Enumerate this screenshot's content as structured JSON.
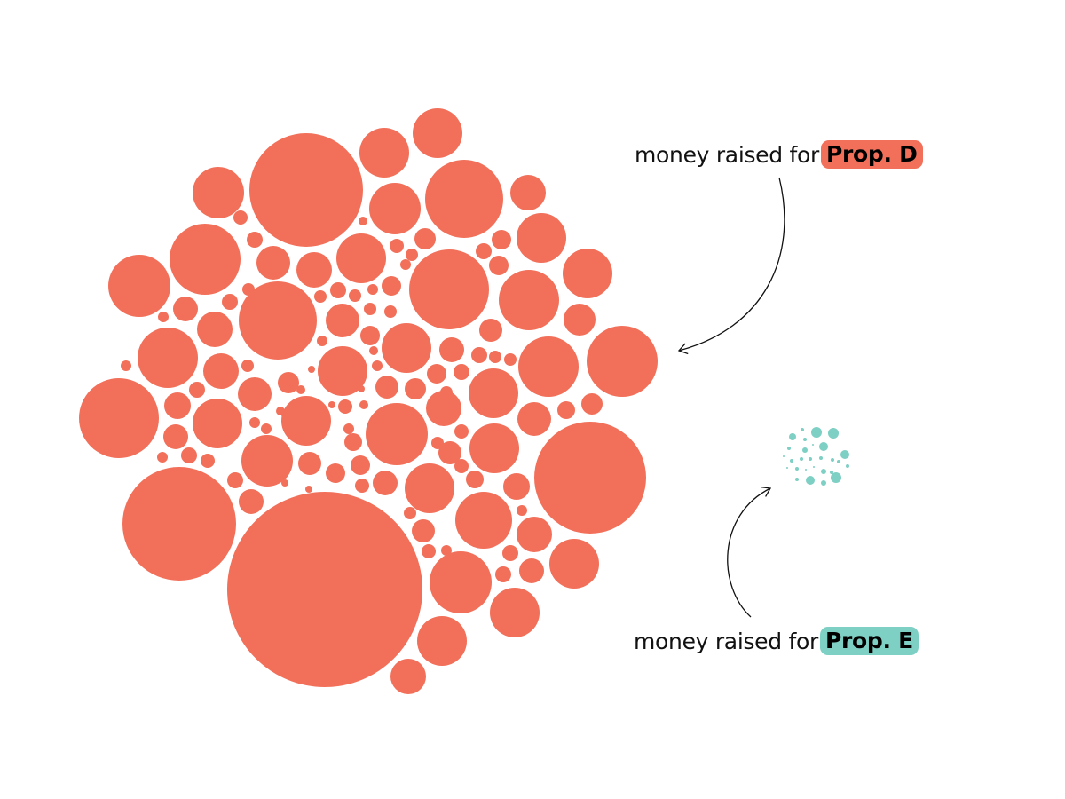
{
  "annotations": [
    {
      "prefix": "money raised for",
      "highlight": "Prop. D",
      "color": "#F2705A"
    },
    {
      "prefix": "money raised for",
      "highlight": "Prop. E",
      "color": "#7ECFC4"
    }
  ],
  "colors": {
    "prop_d": "#F2705A",
    "prop_e": "#7ECFC4",
    "arrow": "#111111"
  }
}
